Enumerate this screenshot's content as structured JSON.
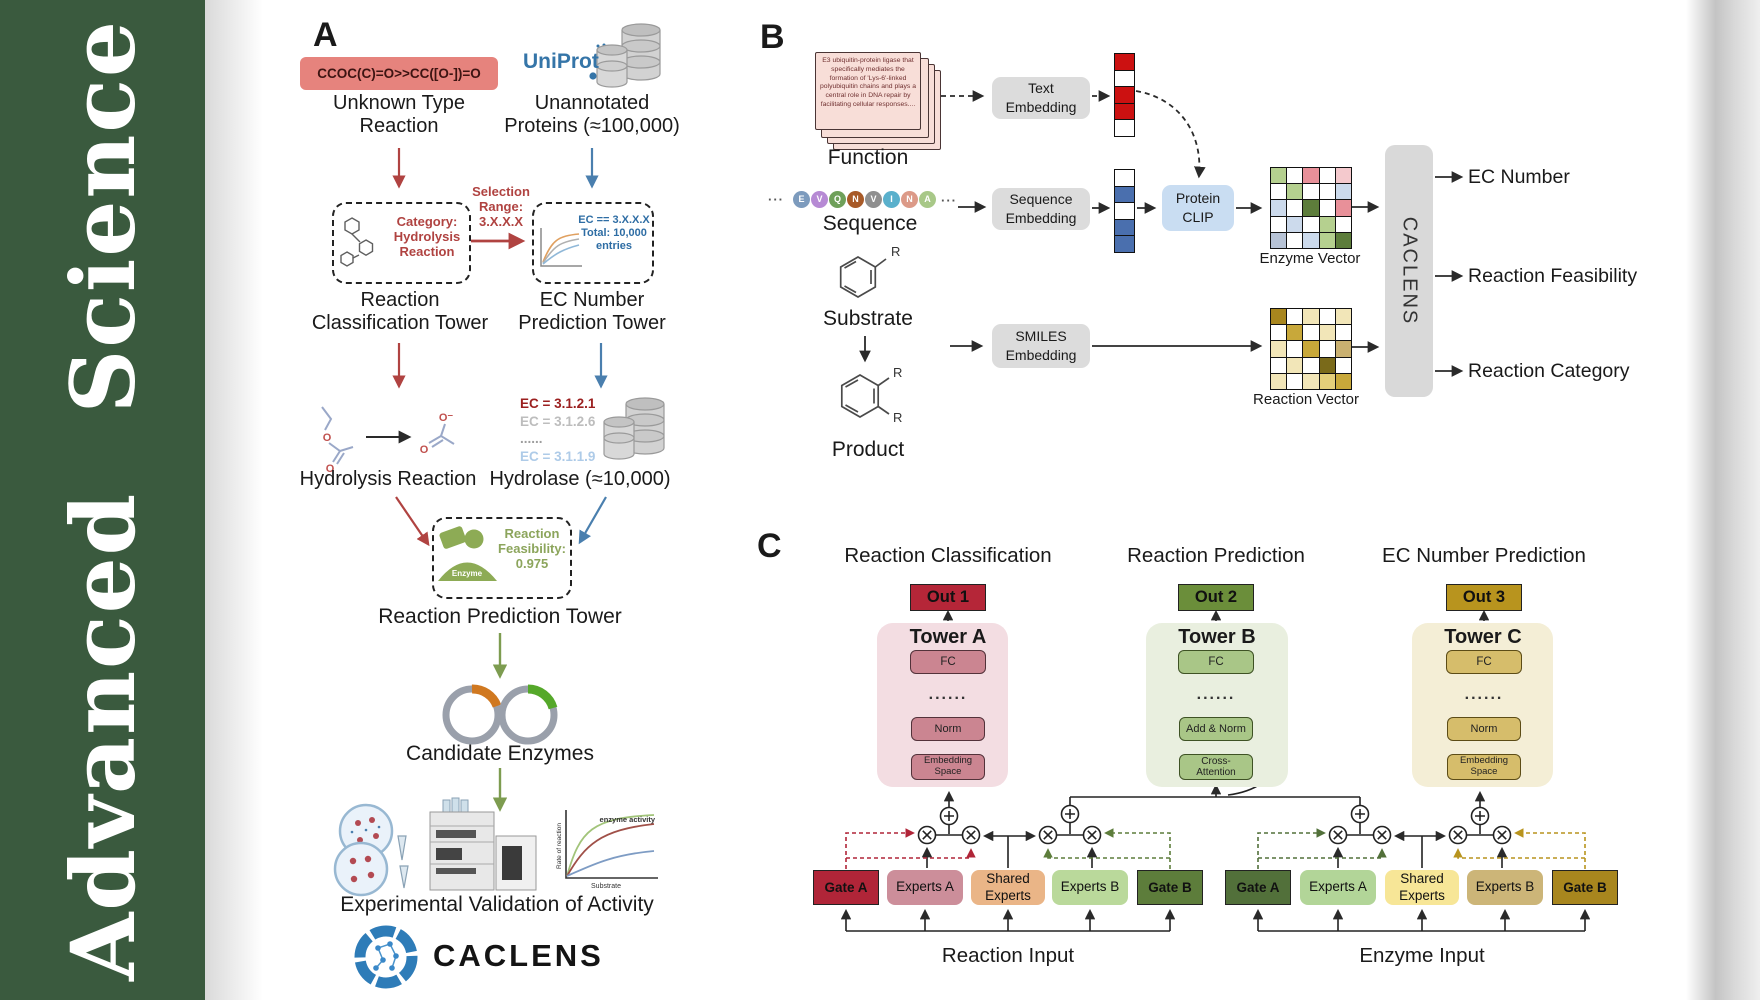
{
  "journal": {
    "brand_vertical": "Advanced Science"
  },
  "colors": {
    "sidebar_green": "#3a5a3e",
    "uniprot_blue": "#3575a8",
    "caclens_blue": "#2e7cb8",
    "arrow_red": "#b04341",
    "arrow_blue": "#4a7fae",
    "arrow_green": "#7d9c50"
  },
  "panel_a": {
    "label": "A",
    "smiles_box": "CCOC(C)=O>>CC([O-])=O",
    "uniprot_logo": "UniProt",
    "unknown_type_reaction": "Unknown Type\nReaction",
    "unannotated_proteins": "Unannotated\nProteins (≈100,000)",
    "selection_range": "Selection\nRange:\n3.X.X.X",
    "category_box": "Category:\nHydrolysis\nReaction",
    "ec_box": "EC == 3.X.X.X\nTotal: 10,000\nentries",
    "reaction_classification_tower": "Reaction\nClassification Tower",
    "ec_number_prediction_tower": "EC Number\nPrediction Tower",
    "hydrolysis_reaction": "Hydrolysis Reaction",
    "hydrolase": "Hydrolase (≈10,000)",
    "ec_list": [
      {
        "text": "EC = 3.1.2.1",
        "color": "#9b1f1f"
      },
      {
        "text": "EC = 3.1.2.6",
        "color": "#bdbdbd"
      },
      {
        "text": "......",
        "color": "#9e9e9e"
      },
      {
        "text": "EC = 3.1.1.9",
        "color": "#aecbe8"
      }
    ],
    "enzyme_icon_label": "Enzyme",
    "reaction_feasibility": "Reaction\nFeasibility:\n0.975",
    "reaction_prediction_tower": "Reaction Prediction Tower",
    "candidate_enzymes": "Candidate Enzymes",
    "activity_plot": {
      "title": "enzyme activity",
      "ylabel": "Rate of reaction",
      "xlabel": "Substrate"
    },
    "experimental_validation": "Experimental Validation of Activity",
    "caclens_wordmark": "CACLENS"
  },
  "panel_b": {
    "label": "B",
    "function_card_text": "E3 ubiquitin-protein ligase that specifically mediates the formation of 'Lys-6'-linked polyubiquitin chains and plays a central role in DNA repair by facilitating cellular responses....",
    "function_label": "Function",
    "ellipsis": "···",
    "sequence_residues": [
      {
        "letter": "E",
        "color": "#7d9bbd"
      },
      {
        "letter": "V",
        "color": "#b68ad4"
      },
      {
        "letter": "Q",
        "color": "#6fa05a"
      },
      {
        "letter": "N",
        "color": "#a85a28"
      },
      {
        "letter": "V",
        "color": "#8f8f8f"
      },
      {
        "letter": "I",
        "color": "#5ab0cc"
      },
      {
        "letter": "N",
        "color": "#dc9a88"
      },
      {
        "letter": "A",
        "color": "#a8c888"
      }
    ],
    "sequence_label": "Sequence",
    "substrate_label": "Substrate",
    "product_label": "Product",
    "r_group": "R",
    "text_embedding": "Text\nEmbedding",
    "sequence_embedding": "Sequence\nEmbedding",
    "smiles_embedding": "SMILES\nEmbedding",
    "protein_clip": "Protein\nCLIP",
    "text_vector": [
      "#cc1111",
      "#ffffff",
      "#cc1111",
      "#cc1111",
      "#ffffff"
    ],
    "sequence_vector": [
      "#ffffff",
      "#4a6fae",
      "#ffffff",
      "#4a6fae",
      "#4a6fae"
    ],
    "enzyme_matrix": [
      [
        "#b5d08f",
        "#ffffff",
        "#e89099",
        "#ffffff",
        "#f4c9cd"
      ],
      [
        "#ffffff",
        "#b5d08f",
        "#ffffff",
        "#ffffff",
        "#ccdaec"
      ],
      [
        "#ccdaec",
        "#ffffff",
        "#5d7d3b",
        "#ffffff",
        "#e89099"
      ],
      [
        "#ffffff",
        "#ccdaec",
        "#ffffff",
        "#b5d08f",
        "#ffffff"
      ],
      [
        "#b7c3d6",
        "#ffffff",
        "#ccdaec",
        "#b5d08f",
        "#5d7d3b"
      ]
    ],
    "reaction_matrix": [
      [
        "#a8861e",
        "#ffffff",
        "#f2e6b8",
        "#ffffff",
        "#f2e6b8"
      ],
      [
        "#ffffff",
        "#c8a83a",
        "#ffffff",
        "#f2e6b8",
        "#ffffff"
      ],
      [
        "#f2e6b8",
        "#ffffff",
        "#c8a83a",
        "#ffffff",
        "#c9b070"
      ],
      [
        "#ffffff",
        "#f2e6b8",
        "#ffffff",
        "#7a6a1a",
        "#ffffff"
      ],
      [
        "#f2e6b8",
        "#ffffff",
        "#f2e6b8",
        "#e4cf7a",
        "#c8a83a"
      ]
    ],
    "enzyme_vector_label": "Enzyme Vector",
    "reaction_vector_label": "Reaction Vector",
    "caclens_bar": "CACLENS",
    "outputs": [
      "EC Number",
      "Reaction Feasibility",
      "Reaction Category"
    ]
  },
  "panel_c": {
    "label": "C",
    "columns": [
      {
        "title": "Reaction Classification",
        "out": "Out 1",
        "tower": "Tower A",
        "blocks": [
          "FC",
          "......",
          "Norm",
          "Embedding\nSpace"
        ]
      },
      {
        "title": "Reaction Prediction",
        "out": "Out 2",
        "tower": "Tower B",
        "blocks": [
          "FC",
          "......",
          "Add & Norm",
          "Cross-\nAttention"
        ]
      },
      {
        "title": "EC Number Prediction",
        "out": "Out 3",
        "tower": "Tower C",
        "blocks": [
          "FC",
          "......",
          "Norm",
          "Embedding\nSpace"
        ]
      }
    ],
    "reaction_group": {
      "gate_a": "Gate A",
      "experts_a": "Experts A",
      "shared": "Shared\nExperts",
      "experts_b": "Experts B",
      "gate_b": "Gate B",
      "input": "Reaction Input"
    },
    "enzyme_group": {
      "gate_a": "Gate A",
      "experts_a": "Experts A",
      "shared": "Shared\nExperts",
      "experts_b": "Experts B",
      "gate_b": "Gate B",
      "input": "Enzyme Input"
    }
  }
}
